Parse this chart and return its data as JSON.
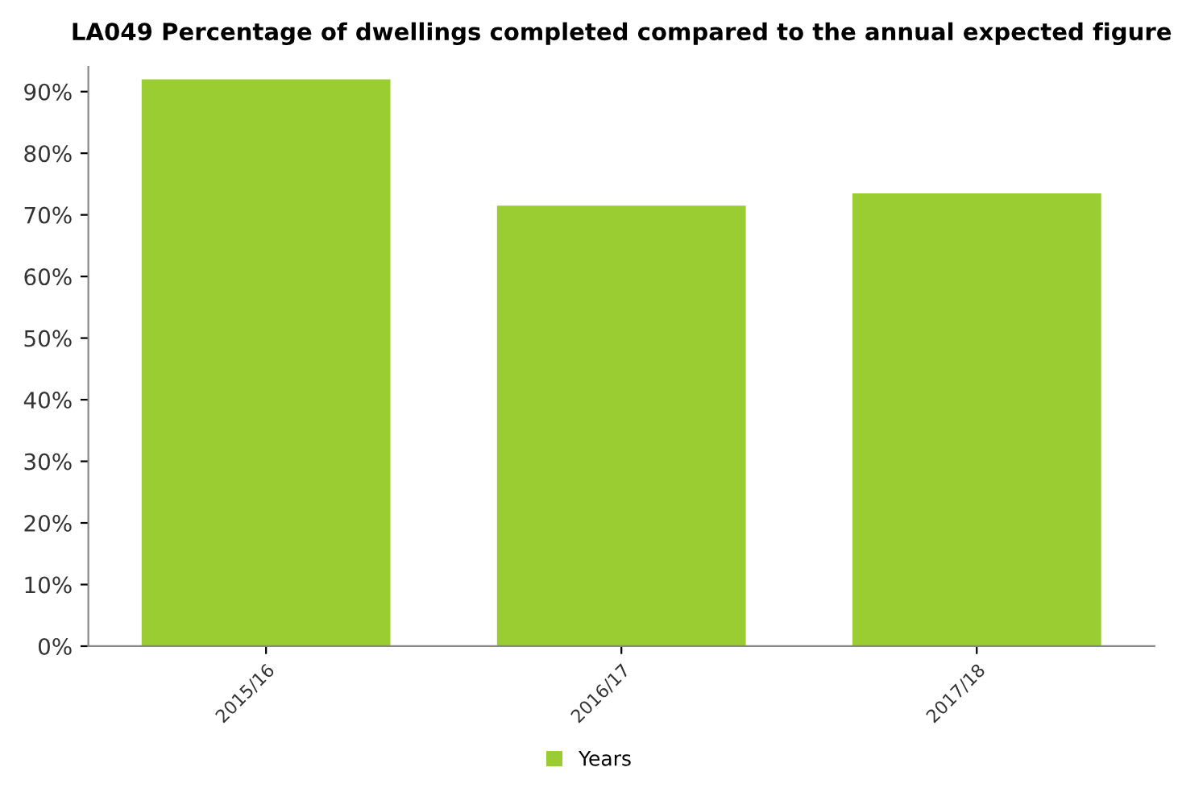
{
  "chart_data": {
    "type": "bar",
    "title": "LA049 Percentage of dwellings completed compared to the annual expected figure",
    "categories": [
      "2015/16",
      "2016/17",
      "2017/18"
    ],
    "series": [
      {
        "name": "Years",
        "color": "#9acd32",
        "values": [
          92,
          71.5,
          73.5
        ]
      }
    ],
    "ylim": [
      0,
      94
    ],
    "yticks": [
      {
        "value": 0,
        "label": "0%"
      },
      {
        "value": 10,
        "label": "10%"
      },
      {
        "value": 20,
        "label": "20%"
      },
      {
        "value": 30,
        "label": "30%"
      },
      {
        "value": 40,
        "label": "40%"
      },
      {
        "value": 50,
        "label": "50%"
      },
      {
        "value": 60,
        "label": "60%"
      },
      {
        "value": 70,
        "label": "70%"
      },
      {
        "value": 80,
        "label": "80%"
      },
      {
        "value": 90,
        "label": "90%"
      }
    ],
    "grid": false,
    "legend": "bottom"
  }
}
